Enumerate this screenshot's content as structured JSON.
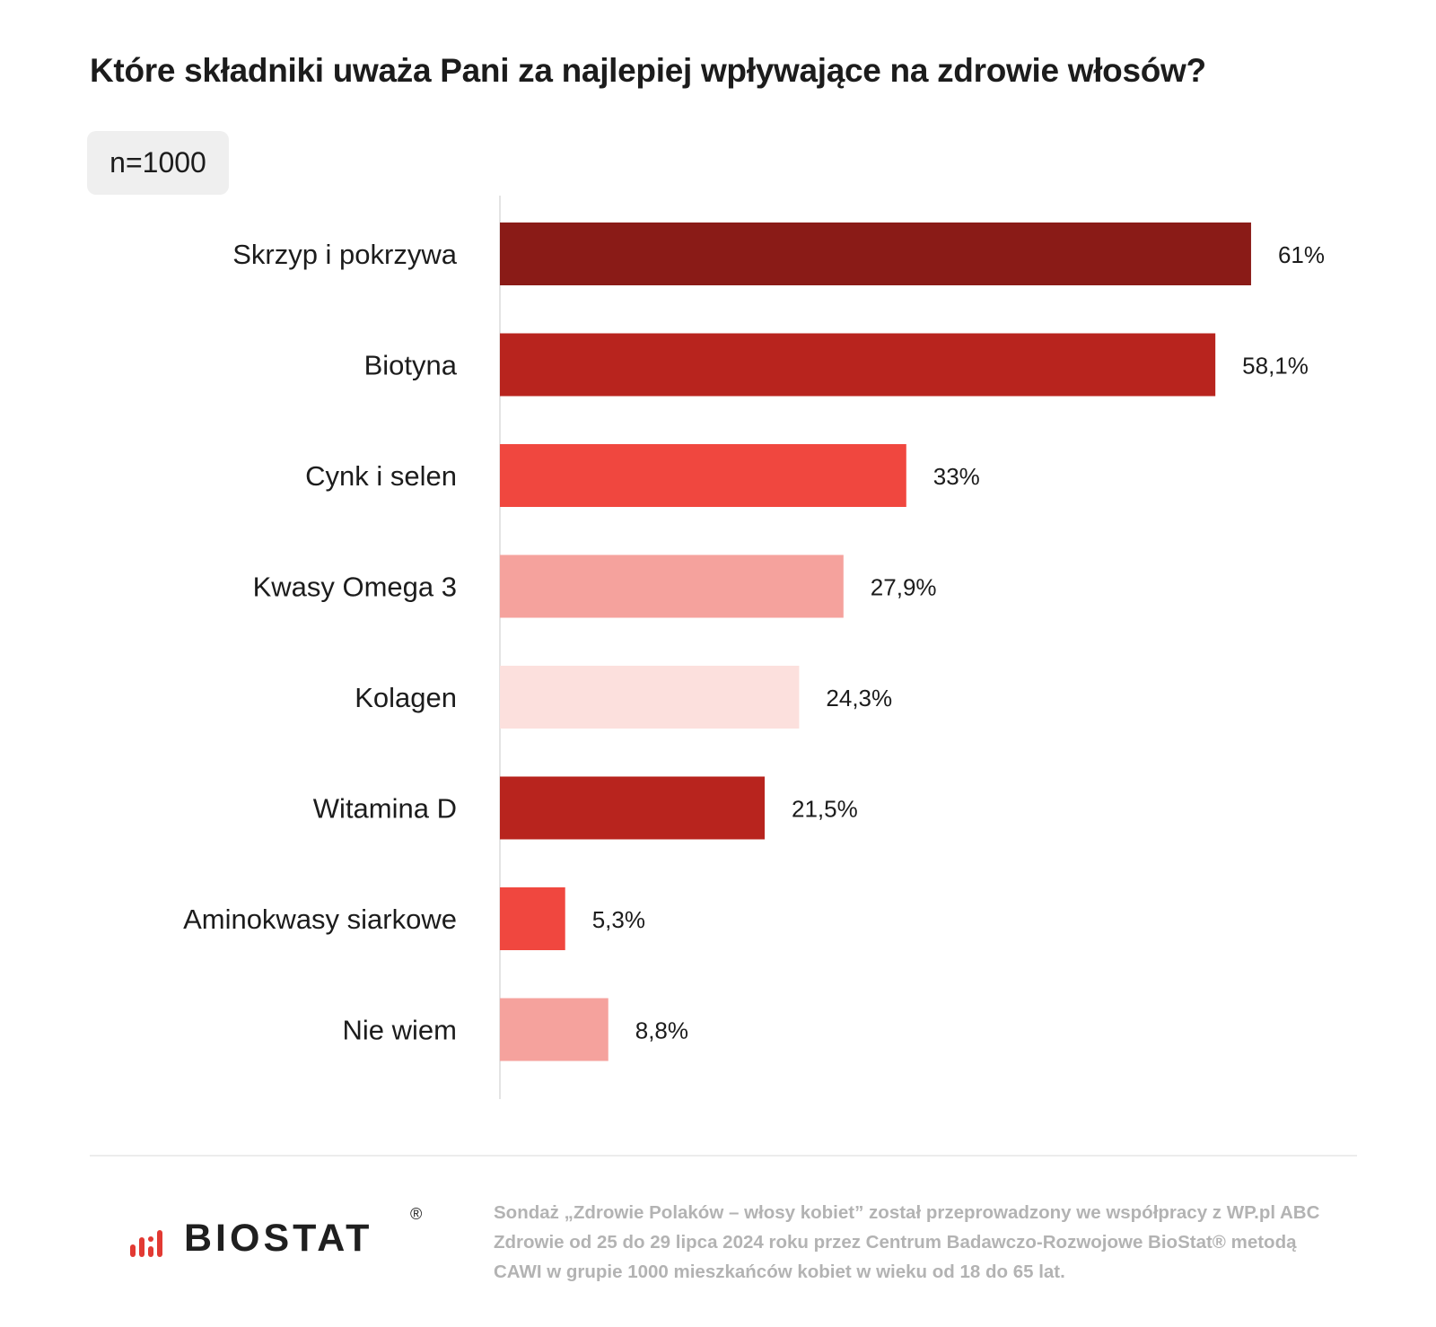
{
  "title": "Które składniki uważa Pani za najlepiej wpływające na zdrowie włosów?",
  "sample_label": "n=1000",
  "chart_data": {
    "type": "bar",
    "orientation": "horizontal",
    "title": "Które składniki uważa Pani za najlepiej wpływające na zdrowie włosów?",
    "categories": [
      "Skrzyp i pokrzywa",
      "Biotyna",
      "Cynk i selen",
      "Kwasy Omega 3",
      "Kolagen",
      "Witamina D",
      "Aminokwasy siarkowe",
      "Nie wiem"
    ],
    "values": [
      61,
      58.1,
      33,
      27.9,
      24.3,
      21.5,
      5.3,
      8.8
    ],
    "value_labels": [
      "61%",
      "58,1%",
      "33%",
      "27,9%",
      "24,3%",
      "21,5%",
      "5,3%",
      "8,8%"
    ],
    "colors": [
      "#8a1b17",
      "#b8241e",
      "#f0473f",
      "#f5a29d",
      "#fce0dd",
      "#b8241e",
      "#f0473f",
      "#f5a29d"
    ],
    "xlim": [
      0,
      68
    ],
    "grid": false,
    "legend": "none"
  },
  "footer": {
    "logo_text": "BIOSTAT",
    "logo_mark": "®",
    "note": "Sondaż „Zdrowie Polaków – włosy kobiet” został przeprowadzony we współpracy z WP.pl ABC Zdrowie od 25 do 29 lipca 2024 roku przez Centrum Badawczo-Rozwojowe BioStat® metodą CAWI w grupie 1000 mieszkańców kobiet w wieku od 18 do 65 lat."
  }
}
